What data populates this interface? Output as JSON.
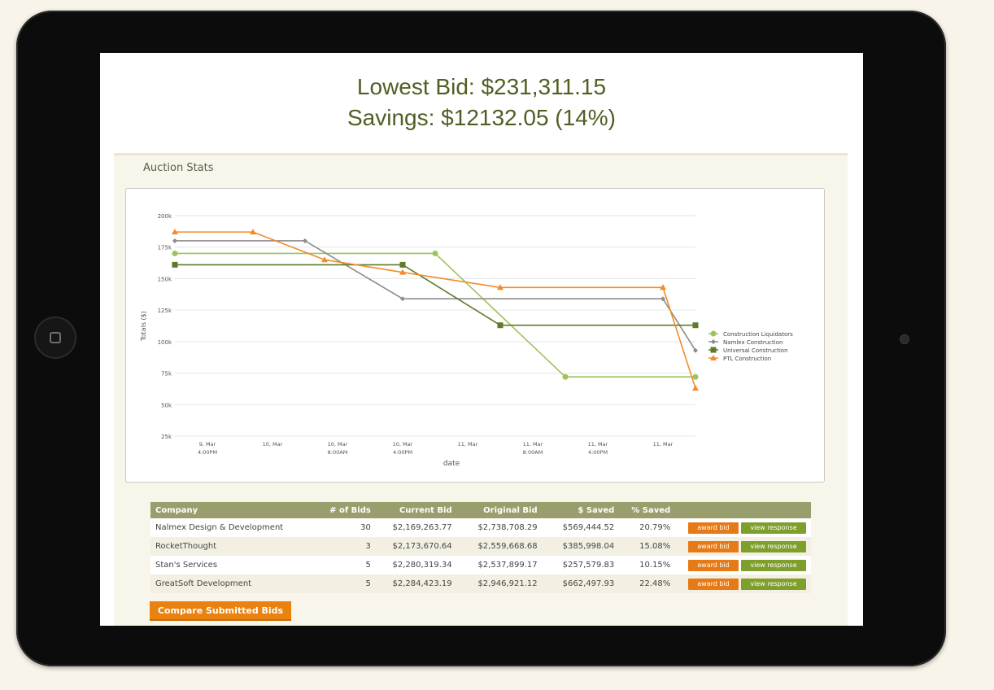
{
  "header": {
    "lowest_bid": "Lowest Bid: $231,311.15",
    "savings": "Savings: $12132.05 (14%)"
  },
  "panel": {
    "title": "Auction Stats"
  },
  "chart_data": {
    "type": "line",
    "x": [
      "9, Mar 4:00PM",
      "10, Mar",
      "10, Mar 8:00AM",
      "10, Mar 4:00PM",
      "11, Mar",
      "11, Mar 8:00AM",
      "11, Mar 4:00PM",
      "11, Mar"
    ],
    "x_tick_lines": [
      [
        "9, Mar",
        "4:00PM"
      ],
      [
        "10, Mar"
      ],
      [
        "10, Mar",
        "8:00AM"
      ],
      [
        "10, Mar",
        "4:00PM"
      ],
      [
        "11, Mar"
      ],
      [
        "11, Mar",
        "8:00AM"
      ],
      [
        "11, Mar",
        "4:00PM"
      ],
      [
        "11, Mar"
      ]
    ],
    "xlabel": "date",
    "ylabel": "Totals ($)",
    "ylim": [
      25000,
      200000
    ],
    "yticks": [
      25000,
      50000,
      75000,
      100000,
      125000,
      150000,
      175000,
      200000
    ],
    "ytick_labels": [
      "25k",
      "50k",
      "75k",
      "100k",
      "125k",
      "150k",
      "175k",
      "200k"
    ],
    "grid": true,
    "legend_position": "right",
    "series": [
      {
        "name": "Construction Liquidators",
        "color": "#9bc45a",
        "marker": "circle",
        "points": [
          [
            0,
            170000
          ],
          [
            4,
            170000
          ],
          [
            6,
            72000
          ],
          [
            8,
            72000
          ]
        ]
      },
      {
        "name": "Namlex Construction",
        "color": "#8c8c8c",
        "marker": "diamond",
        "points": [
          [
            0,
            180000
          ],
          [
            2,
            180000
          ],
          [
            3.5,
            134000
          ],
          [
            7.5,
            134000
          ],
          [
            8,
            93000
          ]
        ]
      },
      {
        "name": "Universal Construction",
        "color": "#5e7a2a",
        "marker": "square",
        "points": [
          [
            0,
            161000
          ],
          [
            3.5,
            161000
          ],
          [
            5,
            113000
          ],
          [
            8,
            113000
          ]
        ]
      },
      {
        "name": "PTL Construction",
        "color": "#f28c28",
        "marker": "triangle",
        "points": [
          [
            0,
            187000
          ],
          [
            1.2,
            187000
          ],
          [
            2.3,
            165000
          ],
          [
            3.5,
            155000
          ],
          [
            5,
            143000
          ],
          [
            7.5,
            143000
          ],
          [
            8,
            63000
          ]
        ]
      }
    ]
  },
  "table": {
    "headers": [
      "Company",
      "# of Bids",
      "Current Bid",
      "Original Bid",
      "$ Saved",
      "% Saved"
    ],
    "rows": [
      {
        "company": "Nalmex Design & Development",
        "bids": "30",
        "current": "$2,169,263.77",
        "original": "$2,738,708.29",
        "saved": "$569,444.52",
        "pct": "20.79%"
      },
      {
        "company": "RocketThought",
        "bids": "3",
        "current": "$2,173,670.64",
        "original": "$2,559,668.68",
        "saved": "$385,998.04",
        "pct": "15.08%"
      },
      {
        "company": "Stan's Services",
        "bids": "5",
        "current": "$2,280,319.34",
        "original": "$2,537,899.17",
        "saved": "$257,579.83",
        "pct": "10.15%"
      },
      {
        "company": "GreatSoft Development",
        "bids": "5",
        "current": "$2,284,423.19",
        "original": "$2,946,921.12",
        "saved": "$662,497.93",
        "pct": "22.48%"
      }
    ],
    "award_label": "award bid",
    "view_label": "view response"
  },
  "compare_button": "Compare Submitted Bids"
}
